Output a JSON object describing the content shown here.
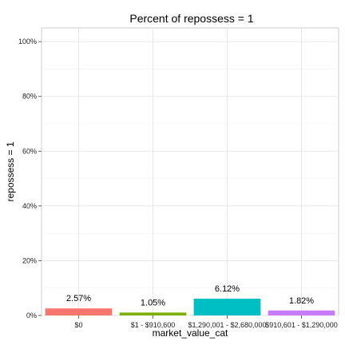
{
  "chart_data": {
    "type": "bar",
    "title": "Percent of repossess = 1",
    "xlabel": "market_value_cat",
    "ylabel": "repossess = 1",
    "categories": [
      "$0",
      "$1 - $910,600",
      "$1,290,001 - $2,680,000",
      "$910,601 - $1,290,000"
    ],
    "values": [
      2.57,
      1.05,
      6.12,
      1.82
    ],
    "data_labels": [
      "2.57%",
      "1.05%",
      "6.12%",
      "1.82%"
    ],
    "ylim": [
      0,
      105
    ],
    "yticks": [
      0,
      20,
      40,
      60,
      80,
      100
    ],
    "ytick_labels": [
      "0%",
      "20%",
      "40%",
      "60%",
      "80%",
      "100%"
    ],
    "colors": [
      "#F8766D",
      "#7CAE00",
      "#00BFC4",
      "#C77CFF"
    ],
    "grid": true,
    "legend": "none"
  }
}
